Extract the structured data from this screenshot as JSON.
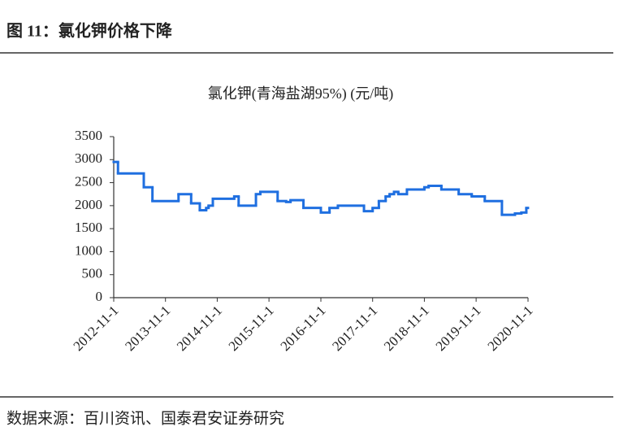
{
  "header": {
    "title": "图 11：氯化钾价格下降"
  },
  "chart_data": {
    "type": "line",
    "step": "post",
    "title": "氯化钾(青海盐湖95%) (元/吨)",
    "x": [
      "2012-11-1",
      "2012-12-1",
      "2013-6-1",
      "2013-8-1",
      "2014-2-1",
      "2014-5-1",
      "2014-7-1",
      "2014-8-15",
      "2014-9-1",
      "2014-10-1",
      "2015-3-1",
      "2015-4-1",
      "2015-8-1",
      "2015-9-1",
      "2016-1-1",
      "2016-3-1",
      "2016-4-1",
      "2016-7-1",
      "2016-11-1",
      "2017-1-1",
      "2017-3-1",
      "2017-9-1",
      "2017-11-1",
      "2017-12-15",
      "2018-2-1",
      "2018-3-1",
      "2018-4-1",
      "2018-5-1",
      "2018-7-1",
      "2018-11-1",
      "2018-12-1",
      "2019-3-1",
      "2019-7-1",
      "2019-10-1",
      "2020-1-1",
      "2020-5-1",
      "2020-8-1",
      "2020-9-15",
      "2020-10-20"
    ],
    "values": [
      2950,
      2700,
      2400,
      2100,
      2250,
      2050,
      1900,
      1950,
      2000,
      2150,
      2200,
      2000,
      2250,
      2300,
      2100,
      2080,
      2120,
      1950,
      1850,
      1950,
      2000,
      1880,
      1950,
      2100,
      2200,
      2250,
      2300,
      2250,
      2350,
      2400,
      2430,
      2350,
      2250,
      2200,
      2100,
      1800,
      1830,
      1850,
      1950
    ],
    "color": "#1f6fe0",
    "xlim": [
      "2012-11-1",
      "2020-11-1"
    ],
    "xticks": [
      "2012-11-1",
      "2013-11-1",
      "2014-11-1",
      "2015-11-1",
      "2016-11-1",
      "2017-11-1",
      "2018-11-1",
      "2019-11-1",
      "2020-11-1"
    ],
    "ylim": [
      0,
      3500
    ],
    "yticks": [
      0,
      500,
      1000,
      1500,
      2000,
      2500,
      3000,
      3500
    ]
  },
  "source": "数据来源：百川资讯、国泰君安证券研究"
}
